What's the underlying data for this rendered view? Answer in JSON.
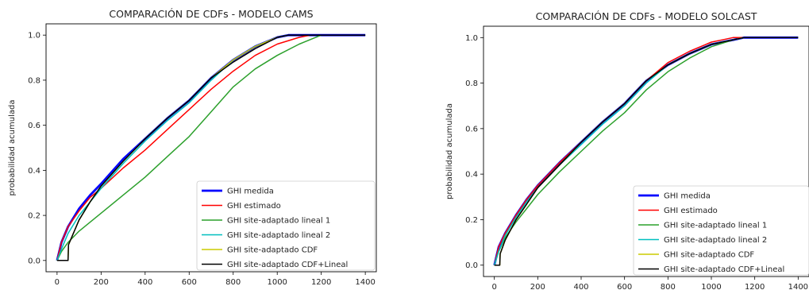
{
  "chart_data": [
    {
      "type": "line",
      "title": "COMPARACIÓN DE CDFs - MODELO CAMS",
      "xlabel": "",
      "ylabel": "probabilidad acumulada",
      "xlim": [
        -50,
        1450
      ],
      "ylim": [
        -0.05,
        1.05
      ],
      "xticks": [
        0,
        200,
        400,
        600,
        800,
        1000,
        1200,
        1400
      ],
      "yticks": [
        0.0,
        0.2,
        0.4,
        0.6,
        0.8,
        1.0
      ],
      "grid": false,
      "legend_position": "lower-right",
      "series": [
        {
          "name": "GHI medida",
          "color": "#0000ff",
          "x": [
            0,
            20,
            50,
            100,
            150,
            200,
            300,
            400,
            500,
            600,
            650,
            700,
            800,
            900,
            1000,
            1050,
            1100,
            1200,
            1400
          ],
          "y": [
            0,
            0.08,
            0.15,
            0.23,
            0.29,
            0.34,
            0.45,
            0.54,
            0.63,
            0.71,
            0.76,
            0.81,
            0.89,
            0.95,
            0.99,
            1.0,
            1.0,
            1.0,
            1.0
          ]
        },
        {
          "name": "GHI estimado",
          "color": "#ff0000",
          "x": [
            0,
            20,
            50,
            100,
            150,
            200,
            300,
            400,
            500,
            600,
            700,
            800,
            900,
            1000,
            1100,
            1150,
            1200,
            1400
          ],
          "y": [
            0,
            0.08,
            0.15,
            0.22,
            0.28,
            0.32,
            0.41,
            0.49,
            0.58,
            0.67,
            0.76,
            0.84,
            0.91,
            0.96,
            0.99,
            1.0,
            1.0,
            1.0
          ]
        },
        {
          "name": "GHI site-adaptado lineal 1",
          "color": "#2ca02c",
          "x": [
            0,
            20,
            50,
            100,
            150,
            200,
            300,
            400,
            500,
            600,
            700,
            800,
            900,
            1000,
            1100,
            1200,
            1400
          ],
          "y": [
            0,
            0.04,
            0.08,
            0.13,
            0.17,
            0.21,
            0.29,
            0.37,
            0.46,
            0.55,
            0.66,
            0.77,
            0.85,
            0.91,
            0.96,
            1.0,
            1.0
          ]
        },
        {
          "name": "GHI site-adaptado lineal 2",
          "color": "#00bfbf",
          "x": [
            0,
            20,
            50,
            100,
            150,
            200,
            300,
            400,
            500,
            600,
            650,
            700,
            800,
            900,
            1000,
            1050,
            1100,
            1400
          ],
          "y": [
            0,
            0.05,
            0.12,
            0.2,
            0.26,
            0.32,
            0.43,
            0.53,
            0.62,
            0.7,
            0.75,
            0.8,
            0.89,
            0.95,
            0.99,
            1.0,
            1.0,
            1.0
          ]
        },
        {
          "name": "GHI site-adaptado CDF",
          "color": "#cccc00",
          "x": [
            0,
            50,
            52,
            100,
            150,
            200,
            300,
            400,
            500,
            600,
            650,
            700,
            800,
            900,
            1000,
            1050,
            1100,
            1400
          ],
          "y": [
            0,
            0,
            0.07,
            0.18,
            0.26,
            0.33,
            0.44,
            0.54,
            0.63,
            0.71,
            0.76,
            0.81,
            0.89,
            0.95,
            0.99,
            1.0,
            1.0,
            1.0
          ]
        },
        {
          "name": "GHI site-adaptado CDF+Lineal",
          "color": "#000000",
          "x": [
            0,
            50,
            52,
            100,
            150,
            200,
            300,
            400,
            500,
            600,
            650,
            700,
            800,
            900,
            1000,
            1050,
            1100,
            1400
          ],
          "y": [
            0,
            0,
            0.07,
            0.18,
            0.26,
            0.33,
            0.44,
            0.54,
            0.63,
            0.71,
            0.76,
            0.81,
            0.88,
            0.94,
            0.99,
            1.0,
            1.0,
            1.0
          ]
        }
      ]
    },
    {
      "type": "line",
      "title": "COMPARACIÓN DE CDFs - MODELO SOLCAST",
      "xlabel": "",
      "ylabel": "probabilidad acumulada",
      "xlim": [
        -50,
        1450
      ],
      "ylim": [
        -0.05,
        1.05
      ],
      "xticks": [
        0,
        200,
        400,
        600,
        800,
        1000,
        1200,
        1400
      ],
      "yticks": [
        0.0,
        0.2,
        0.4,
        0.6,
        0.8,
        1.0
      ],
      "grid": false,
      "legend_position": "lower-right",
      "series": [
        {
          "name": "GHI medida",
          "color": "#0000ff",
          "x": [
            0,
            20,
            50,
            100,
            150,
            200,
            300,
            400,
            500,
            600,
            650,
            700,
            800,
            900,
            1000,
            1100,
            1150,
            1400
          ],
          "y": [
            0,
            0.08,
            0.14,
            0.22,
            0.29,
            0.35,
            0.45,
            0.54,
            0.63,
            0.71,
            0.76,
            0.81,
            0.88,
            0.93,
            0.97,
            0.99,
            1.0,
            1.0
          ]
        },
        {
          "name": "GHI estimado",
          "color": "#ff0000",
          "x": [
            0,
            20,
            50,
            100,
            150,
            200,
            300,
            400,
            500,
            600,
            650,
            700,
            800,
            900,
            1000,
            1050,
            1100,
            1400
          ],
          "y": [
            0,
            0.08,
            0.14,
            0.22,
            0.29,
            0.35,
            0.45,
            0.54,
            0.63,
            0.71,
            0.76,
            0.81,
            0.89,
            0.94,
            0.98,
            0.99,
            1.0,
            1.0
          ]
        },
        {
          "name": "GHI site-adaptado lineal 1",
          "color": "#2ca02c",
          "x": [
            0,
            20,
            50,
            100,
            150,
            200,
            300,
            400,
            500,
            600,
            700,
            800,
            900,
            1000,
            1100,
            1150,
            1200,
            1400
          ],
          "y": [
            0,
            0.06,
            0.12,
            0.19,
            0.25,
            0.31,
            0.41,
            0.5,
            0.59,
            0.67,
            0.77,
            0.85,
            0.91,
            0.96,
            0.99,
            1.0,
            1.0,
            1.0
          ]
        },
        {
          "name": "GHI site-adaptado lineal 2",
          "color": "#00bfbf",
          "x": [
            0,
            20,
            50,
            100,
            150,
            200,
            300,
            400,
            500,
            600,
            650,
            700,
            800,
            900,
            1000,
            1100,
            1150,
            1400
          ],
          "y": [
            0,
            0.06,
            0.13,
            0.21,
            0.28,
            0.34,
            0.44,
            0.53,
            0.62,
            0.7,
            0.75,
            0.8,
            0.88,
            0.93,
            0.97,
            0.99,
            1.0,
            1.0
          ]
        },
        {
          "name": "GHI site-adaptado CDF",
          "color": "#cccc00",
          "x": [
            0,
            25,
            27,
            50,
            100,
            150,
            200,
            300,
            400,
            500,
            600,
            650,
            700,
            800,
            900,
            1000,
            1100,
            1150,
            1400
          ],
          "y": [
            0,
            0,
            0.05,
            0.11,
            0.2,
            0.27,
            0.34,
            0.44,
            0.54,
            0.63,
            0.71,
            0.76,
            0.81,
            0.88,
            0.93,
            0.97,
            0.99,
            1.0,
            1.0
          ]
        },
        {
          "name": "GHI site-adaptado CDF+Lineal",
          "color": "#000000",
          "x": [
            0,
            25,
            27,
            50,
            100,
            150,
            200,
            300,
            400,
            500,
            600,
            650,
            700,
            800,
            900,
            1000,
            1100,
            1150,
            1400
          ],
          "y": [
            0,
            0,
            0.05,
            0.11,
            0.2,
            0.27,
            0.34,
            0.44,
            0.54,
            0.63,
            0.71,
            0.76,
            0.81,
            0.88,
            0.93,
            0.97,
            0.99,
            1.0,
            1.0
          ]
        }
      ]
    }
  ]
}
